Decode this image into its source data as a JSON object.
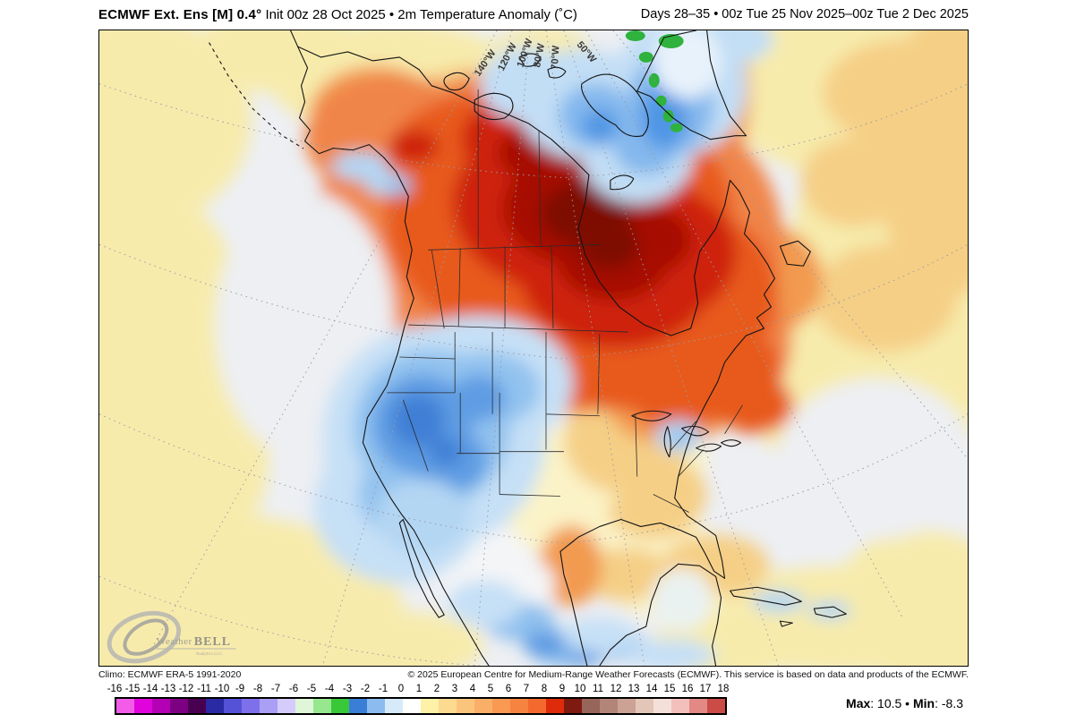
{
  "header": {
    "title_left_bold": "ECMWF Ext.  Ens [M] 0.4°",
    "title_left_rest": " Init 00z 28 Oct 2025 • 2m Temperature Anomaly (˚C)",
    "title_right": "Days 28–35 • 00z Tue 25 Nov 2025–00z Tue 2 Dec 2025"
  },
  "map": {
    "meridian_labels": [
      "140°W",
      "120°W",
      "100°W",
      "80°W",
      "70°W",
      "50°W"
    ],
    "logo": {
      "part1": "Weather",
      "part2": "BELL",
      "sub": "Analytics LLC"
    }
  },
  "footer": {
    "climo": "Climo: ECMWF ERA-5 1991-2020",
    "copyright": "© 2025 European Centre for Medium-Range Weather Forecasts (ECMWF). This service is based on data and products of the ECMWF."
  },
  "colorbar": {
    "units": "°C",
    "labels": [
      "-16",
      "-15",
      "-14",
      "-13",
      "-12",
      "-11",
      "-10",
      "-9",
      "-8",
      "-7",
      "-6",
      "-5",
      "-4",
      "-3",
      "-2",
      "-1",
      "0",
      "1",
      "2",
      "3",
      "4",
      "5",
      "6",
      "7",
      "8",
      "9",
      "10",
      "11",
      "12",
      "13",
      "14",
      "15",
      "16",
      "17",
      "18"
    ],
    "cell_colors": [
      "#F25CE8",
      "#E004DC",
      "#B400B4",
      "#7E0082",
      "#4A0050",
      "#2A2AA4",
      "#5552D8",
      "#7E70EA",
      "#AB9EF5",
      "#D6CCFB",
      "#DFF7D8",
      "#97E78F",
      "#38C838",
      "#3B7ED8",
      "#8CBCEF",
      "#D6EAFA",
      "#FFFFFE",
      "#FEF1A8",
      "#FCDA90",
      "#FBC47C",
      "#FAAF68",
      "#F99954",
      "#F78340",
      "#F4692E",
      "#DD2B0C",
      "#7F1A10",
      "#97655A",
      "#B28578",
      "#CBA294",
      "#E3C6B8",
      "#F4E0D8",
      "#F3C0BC",
      "#E28885",
      "#CB4B47"
    ],
    "max_label": "Max",
    "max_value": "10.5",
    "min_label": "Min",
    "min_value": "-8.3",
    "colon": ": ",
    "separator": " • "
  }
}
